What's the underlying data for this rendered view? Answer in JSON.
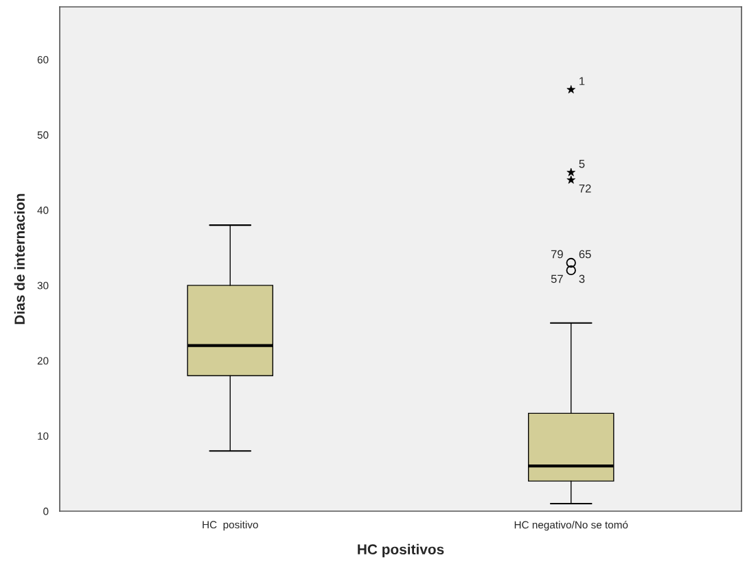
{
  "chart_data": {
    "type": "box",
    "xlabel": "HC positivos",
    "ylabel": "Dias de internacion",
    "categories": [
      "HC  positivo",
      "HC negativo/No se tomó"
    ],
    "boxes": [
      {
        "low": 8,
        "q1": 18,
        "median": 22,
        "q3": 30,
        "high": 38
      },
      {
        "low": 1,
        "q1": 4,
        "median": 6,
        "q3": 13,
        "high": 25
      }
    ],
    "color": "#d3ce97",
    "series": [
      {
        "type": "scatter",
        "marker": "star",
        "color": "#000000",
        "x": [
          "HC negativo/No se tomó",
          "HC negativo/No se tomó",
          "HC negativo/No se tomó"
        ],
        "values": [
          56,
          45,
          44
        ]
      },
      {
        "type": "scatter",
        "marker": "circle",
        "color": "#000000",
        "x": [
          "HC negativo/No se tomó",
          "HC negativo/No se tomó"
        ],
        "values": [
          33,
          32
        ]
      }
    ],
    "ylim": [
      0,
      67
    ],
    "yticks": [
      0,
      10,
      20,
      30,
      40,
      50,
      60
    ],
    "grid": false,
    "legend": false,
    "annotations": [
      {
        "text": "1",
        "x": "HC negativo/No se tomó",
        "y": 56
      },
      {
        "text": "5",
        "x": "HC negativo/No se tomó",
        "y": 45
      },
      {
        "text": "72",
        "x": "HC negativo/No se tomó",
        "y": 44
      },
      {
        "text": "65",
        "x": "HC negativo/No se tomó",
        "y": 33
      },
      {
        "text": "79",
        "x": "HC negativo/No se tomó",
        "y": 33
      },
      {
        "text": "3",
        "x": "HC negativo/No se tomó",
        "y": 32
      },
      {
        "text": "57",
        "x": "HC negativo/No se tomó",
        "y": 32
      }
    ]
  }
}
